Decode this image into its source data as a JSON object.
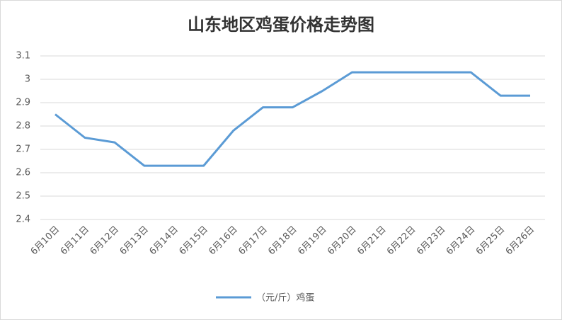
{
  "chart_data": {
    "type": "line",
    "title": "山东地区鸡蛋价格走势图",
    "categories": [
      "6月10日",
      "6月11日",
      "6月12日",
      "6月13日",
      "6月14日",
      "6月15日",
      "6月16日",
      "6月17日",
      "6月18日",
      "6月19日",
      "6月20日",
      "6月21日",
      "6月22日",
      "6月23日",
      "6月24日",
      "6月25日",
      "6月26日"
    ],
    "series": [
      {
        "name": "（元/斤）鸡蛋",
        "color": "#5b9bd5",
        "values": [
          2.85,
          2.75,
          2.73,
          2.63,
          2.63,
          2.63,
          2.78,
          2.88,
          2.88,
          2.95,
          3.03,
          3.03,
          3.03,
          3.03,
          3.03,
          2.93,
          2.93
        ]
      }
    ],
    "ylim": [
      2.4,
      3.1
    ],
    "yticks": [
      2.4,
      2.5,
      2.6,
      2.7,
      2.8,
      2.9,
      3,
      3.1
    ],
    "grid": true,
    "legend": "bottom"
  }
}
